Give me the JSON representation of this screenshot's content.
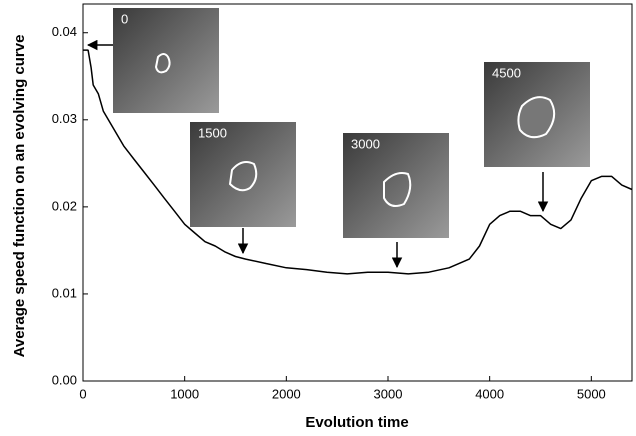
{
  "chart_data": {
    "type": "line",
    "xlabel": "Evolution time",
    "ylabel": "Average speed function on an evolving curve",
    "x": [
      0,
      50,
      80,
      100,
      150,
      200,
      300,
      400,
      500,
      600,
      700,
      800,
      900,
      1000,
      1100,
      1200,
      1300,
      1400,
      1500,
      1600,
      1800,
      2000,
      2200,
      2400,
      2600,
      2800,
      3000,
      3200,
      3400,
      3600,
      3800,
      3900,
      4000,
      4100,
      4200,
      4300,
      4400,
      4500,
      4600,
      4700,
      4800,
      4900,
      5000,
      5100,
      5200,
      5300,
      5400
    ],
    "series": [
      {
        "color": "#000000",
        "values": [
          0.038,
          0.038,
          0.036,
          0.034,
          0.033,
          0.031,
          0.029,
          0.027,
          0.0255,
          0.024,
          0.0225,
          0.021,
          0.0195,
          0.018,
          0.017,
          0.016,
          0.0155,
          0.0148,
          0.0143,
          0.014,
          0.0135,
          0.013,
          0.0128,
          0.0125,
          0.0123,
          0.0125,
          0.0125,
          0.0123,
          0.0125,
          0.013,
          0.014,
          0.0155,
          0.018,
          0.019,
          0.0195,
          0.0195,
          0.019,
          0.019,
          0.018,
          0.0175,
          0.0185,
          0.021,
          0.023,
          0.0235,
          0.0235,
          0.0225,
          0.022
        ]
      }
    ],
    "xlim": [
      0,
      5400
    ],
    "xticks": [
      0,
      1000,
      2000,
      3000,
      4000,
      5000
    ],
    "ylim": [
      0,
      0.0433
    ],
    "yticks": [
      {
        "value": 0,
        "label": "0.00"
      },
      0.01,
      0.02,
      0.03,
      0.04
    ],
    "annotations": [
      "0",
      "1500",
      "3000",
      "4500"
    ]
  }
}
